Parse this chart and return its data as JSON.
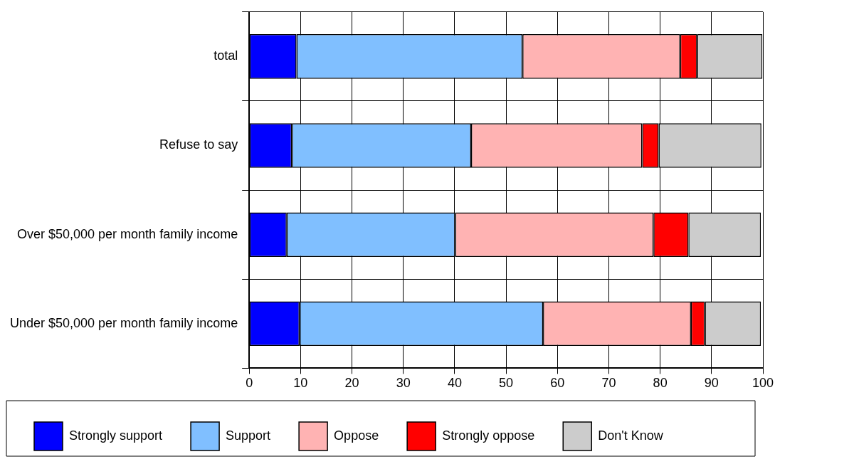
{
  "chart_data": {
    "type": "bar",
    "orientation": "horizontal",
    "stacked": true,
    "categories": [
      "total",
      "Refuse to say",
      "Over $50,000 per month family income",
      "Under $50,000 per month family income"
    ],
    "series": [
      {
        "name": "Strongly support",
        "color": "#0000ff",
        "values": [
          9.2,
          8.3,
          7.3,
          9.8
        ]
      },
      {
        "name": "Support",
        "color": "#80bfff",
        "values": [
          44.0,
          34.9,
          32.8,
          47.4
        ]
      },
      {
        "name": "Oppose",
        "color": "#ffb3b3",
        "values": [
          30.7,
          33.3,
          38.6,
          28.8
        ]
      },
      {
        "name": "Strongly oppose",
        "color": "#ff0000",
        "values": [
          3.3,
          3.2,
          6.8,
          2.7
        ]
      },
      {
        "name": "Don't Know",
        "color": "#cccccc",
        "values": [
          12.7,
          20.0,
          14.1,
          10.9
        ]
      }
    ],
    "xlim": [
      0,
      100
    ],
    "xticks": [
      0,
      10,
      20,
      30,
      40,
      50,
      60,
      70,
      80,
      90,
      100
    ],
    "grid": true,
    "legend": "bottom"
  }
}
